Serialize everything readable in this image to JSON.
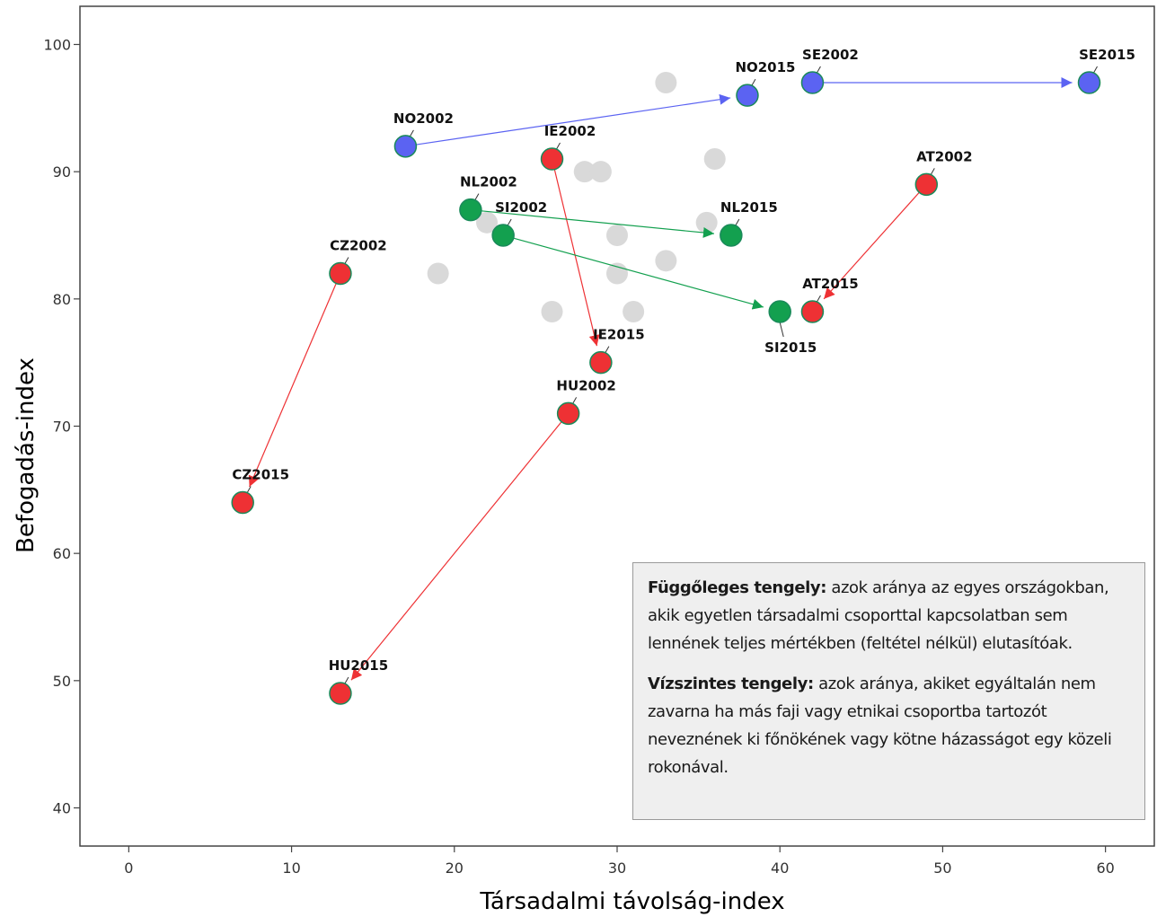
{
  "chart_data": {
    "type": "scatter",
    "title": "",
    "xlabel": "Társadalmi távolság-index",
    "ylabel": "Befogadás-index",
    "xlim": [
      -3,
      63
    ],
    "ylim": [
      37,
      103
    ],
    "xticks": [
      0,
      10,
      20,
      30,
      40,
      50,
      60
    ],
    "yticks": [
      40,
      50,
      60,
      70,
      80,
      90,
      100
    ],
    "grid": false,
    "colors": {
      "blue": "#5b63f2",
      "red": "#ee3134",
      "green": "#13a04f",
      "gray": "#d9d9d9"
    },
    "background_points": [
      {
        "x": 33,
        "y": 97
      },
      {
        "x": 28,
        "y": 90
      },
      {
        "x": 29,
        "y": 90
      },
      {
        "x": 36,
        "y": 91
      },
      {
        "x": 22,
        "y": 86
      },
      {
        "x": 35.5,
        "y": 86
      },
      {
        "x": 30,
        "y": 85
      },
      {
        "x": 19,
        "y": 82
      },
      {
        "x": 30,
        "y": 82
      },
      {
        "x": 33,
        "y": 83
      },
      {
        "x": 26,
        "y": 79
      },
      {
        "x": 31,
        "y": 79
      }
    ],
    "points": [
      {
        "id": "NO2002",
        "label": "NO2002",
        "x": 17,
        "y": 92,
        "color": "blue"
      },
      {
        "id": "NO2015",
        "label": "NO2015",
        "x": 38,
        "y": 96,
        "color": "blue"
      },
      {
        "id": "SE2002",
        "label": "SE2002",
        "x": 42,
        "y": 97,
        "color": "blue"
      },
      {
        "id": "SE2015",
        "label": "SE2015",
        "x": 59,
        "y": 97,
        "color": "blue"
      },
      {
        "id": "IE2002",
        "label": "IE2002",
        "x": 26,
        "y": 91,
        "color": "red"
      },
      {
        "id": "IE2015",
        "label": "IE2015",
        "x": 29,
        "y": 75,
        "color": "red"
      },
      {
        "id": "AT2002",
        "label": "AT2002",
        "x": 49,
        "y": 89,
        "color": "red"
      },
      {
        "id": "AT2015",
        "label": "AT2015",
        "x": 42,
        "y": 79,
        "color": "red"
      },
      {
        "id": "CZ2002",
        "label": "CZ2002",
        "x": 13,
        "y": 82,
        "color": "red"
      },
      {
        "id": "CZ2015",
        "label": "CZ2015",
        "x": 7,
        "y": 64,
        "color": "red"
      },
      {
        "id": "HU2002",
        "label": "HU2002",
        "x": 27,
        "y": 71,
        "color": "red"
      },
      {
        "id": "HU2015",
        "label": "HU2015",
        "x": 13,
        "y": 49,
        "color": "red"
      },
      {
        "id": "NL2002",
        "label": "NL2002",
        "x": 21,
        "y": 87,
        "color": "green"
      },
      {
        "id": "NL2015",
        "label": "NL2015",
        "x": 37,
        "y": 85,
        "color": "green"
      },
      {
        "id": "SI2002",
        "label": "SI2002",
        "x": 23,
        "y": 85,
        "color": "green"
      },
      {
        "id": "SI2015",
        "label": "SI2015",
        "x": 40,
        "y": 79,
        "color": "green"
      }
    ],
    "arrows": [
      {
        "from": "NO2002",
        "to": "NO2015",
        "color": "blue"
      },
      {
        "from": "SE2002",
        "to": "SE2015",
        "color": "blue"
      },
      {
        "from": "IE2002",
        "to": "IE2015",
        "color": "red"
      },
      {
        "from": "AT2002",
        "to": "AT2015",
        "color": "red"
      },
      {
        "from": "CZ2002",
        "to": "CZ2015",
        "color": "red"
      },
      {
        "from": "HU2002",
        "to": "HU2015",
        "color": "red"
      },
      {
        "from": "NL2002",
        "to": "NL2015",
        "color": "green"
      },
      {
        "from": "SI2002",
        "to": "SI2015",
        "color": "green"
      }
    ]
  },
  "note": {
    "vertical_bold": "Függőleges tengely:",
    "vertical_text": " azok aránya az egyes országokban, akik egyetlen társadalmi csoporttal kapcsolatban sem lennének teljes mértékben (feltétel nélkül) elutasítóak.",
    "horizontal_bold": "Vízszintes tengely:",
    "horizontal_text": " azok aránya, akiket egyáltalán nem zavarna ha más faji vagy etnikai csoportba tartozót neveznének ki főnökének vagy kötne házasságot egy közeli rokonával."
  }
}
